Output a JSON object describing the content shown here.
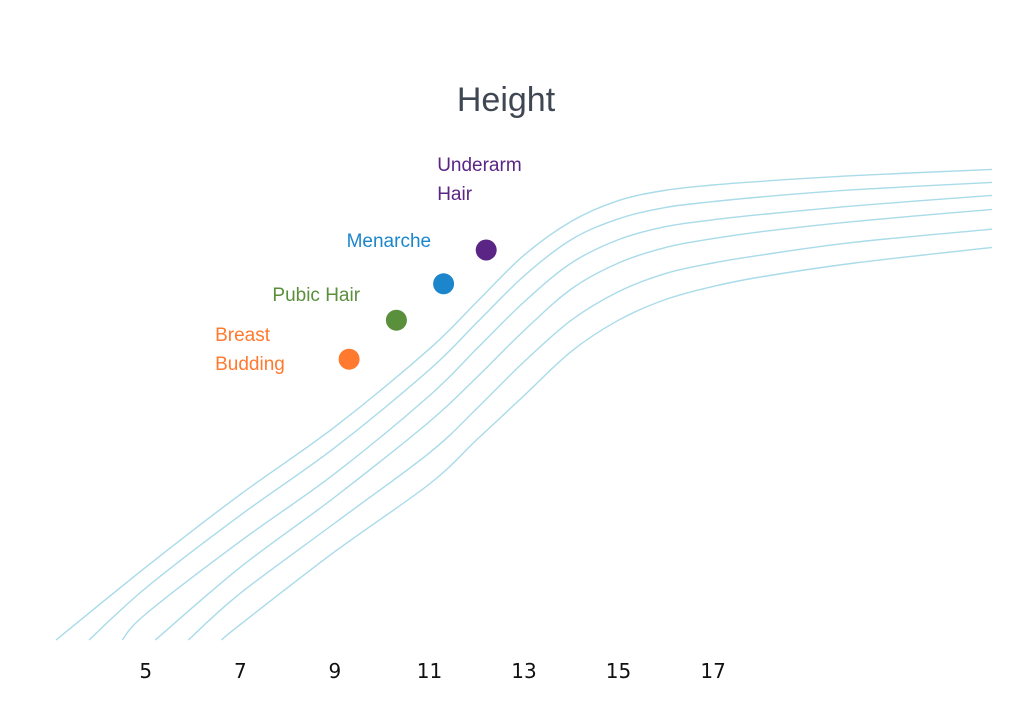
{
  "chart_data": {
    "type": "line",
    "title": "Height",
    "xlabel": "",
    "ylabel": "",
    "x_ticks": [
      5,
      7,
      9,
      11,
      13,
      15,
      17
    ],
    "xlim": [
      3.1,
      22.9
    ],
    "ylim": [
      0,
      100
    ],
    "grid": false,
    "legend": "none",
    "curve_color": "#a9dbe9",
    "series": [
      {
        "x": [
          3.1,
          5,
          7,
          9,
          11,
          12,
          13,
          14,
          15,
          16,
          17,
          18,
          20,
          22.9
        ],
        "y": [
          0,
          14,
          28,
          41,
          56,
          65,
          74,
          80.5,
          84.5,
          86.5,
          87.5,
          88.2,
          89.3,
          90.5
        ]
      },
      {
        "x": [
          3.8,
          5,
          7,
          9,
          11,
          12,
          13,
          14,
          15,
          16,
          17,
          18,
          20,
          22.9
        ],
        "y": [
          0,
          10,
          24,
          37,
          52,
          61,
          70,
          77,
          81,
          83.2,
          84.3,
          85.2,
          86.6,
          88
        ]
      },
      {
        "x": [
          4.5,
          5,
          7,
          9,
          11,
          12,
          13,
          14,
          15,
          16,
          17,
          18,
          20,
          22.9
        ],
        "y": [
          0,
          5,
          19,
          32,
          47,
          56,
          65,
          72.5,
          77,
          79.5,
          80.8,
          81.8,
          83.5,
          85.5
        ]
      },
      {
        "x": [
          5.2,
          7,
          9,
          11,
          12,
          13,
          14,
          15,
          16,
          17,
          18,
          20,
          22.9
        ],
        "y": [
          0,
          14,
          27.5,
          42,
          50.5,
          59.5,
          67.5,
          72.5,
          75.5,
          77.2,
          78.5,
          80.5,
          82.8
        ]
      },
      {
        "x": [
          5.9,
          7,
          9,
          11,
          12,
          13,
          14,
          15,
          16,
          17,
          18,
          20,
          22.9
        ],
        "y": [
          0,
          9,
          22.5,
          36,
          44.5,
          53.5,
          61.5,
          67,
          70.5,
          72.5,
          74,
          76.5,
          79
        ]
      },
      {
        "x": [
          6.6,
          7,
          9,
          11,
          12,
          13,
          14,
          15,
          16,
          17,
          18,
          20,
          22.9
        ],
        "y": [
          0,
          3,
          17,
          30,
          38.5,
          47,
          55.5,
          61.5,
          65.5,
          68,
          69.8,
          72.5,
          75.5
        ]
      }
    ],
    "points": [
      {
        "label": "Breast\nBudding",
        "x": 9.3,
        "y": 54,
        "color": "#ff7a2f"
      },
      {
        "label": "Pubic Hair",
        "x": 10.3,
        "y": 61.5,
        "color": "#5a8f3c"
      },
      {
        "label": "Menarche",
        "x": 11.3,
        "y": 68.5,
        "color": "#1b86cc"
      },
      {
        "label": "Underarm\nHair",
        "x": 12.2,
        "y": 75,
        "color": "#5b2585"
      }
    ]
  }
}
